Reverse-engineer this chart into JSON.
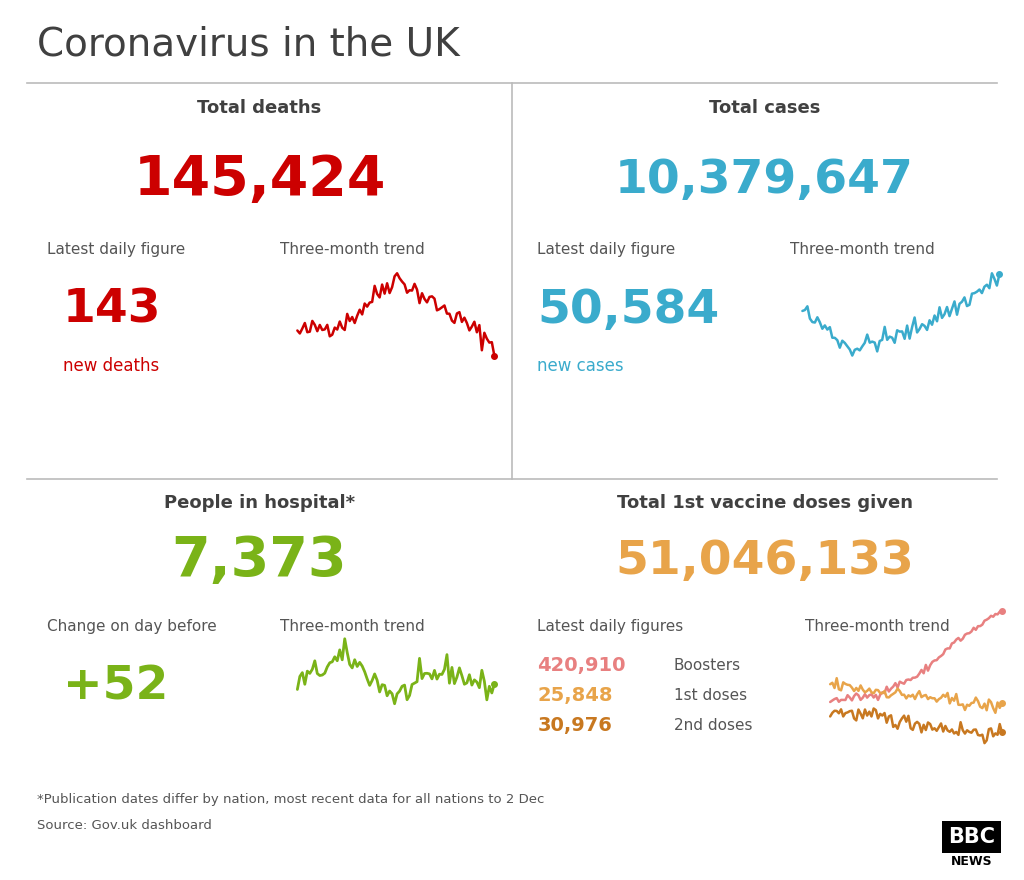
{
  "title": "Coronavirus in the UK",
  "bg_color": "#ffffff",
  "title_color": "#404040",
  "divider_color": "#bbbbbb",
  "deaths_label": "Total deaths",
  "deaths_total": "145,424",
  "deaths_total_color": "#cc0000",
  "deaths_daily_label": "Latest daily figure",
  "deaths_daily_value": "143",
  "deaths_daily_color": "#cc0000",
  "deaths_daily_sublabel": "new deaths",
  "deaths_trend_label": "Three-month trend",
  "cases_label": "Total cases",
  "cases_total": "10,379,647",
  "cases_total_color": "#3aabcc",
  "cases_daily_label": "Latest daily figure",
  "cases_daily_value": "50,584",
  "cases_daily_color": "#3aabcc",
  "cases_daily_sublabel": "new cases",
  "cases_trend_label": "Three-month trend",
  "hospital_label": "People in hospital*",
  "hospital_total": "7,373",
  "hospital_total_color": "#7ab318",
  "hospital_change_label": "Change on day before",
  "hospital_change_value": "+52",
  "hospital_change_color": "#7ab318",
  "hospital_trend_label": "Three-month trend",
  "vaccine_label": "Total 1st vaccine doses given",
  "vaccine_total": "51,046,133",
  "vaccine_total_color": "#e8a44a",
  "vaccine_daily_label": "Latest daily figures",
  "vaccine_boosters_value": "420,910",
  "vaccine_boosters_label": "Boosters",
  "vaccine_boosters_color": "#e88080",
  "vaccine_1st_value": "25,848",
  "vaccine_1st_label": "1st doses",
  "vaccine_1st_color": "#e8a44a",
  "vaccine_2nd_value": "30,976",
  "vaccine_2nd_label": "2nd doses",
  "vaccine_2nd_color": "#c87820",
  "vaccine_trend_label": "Three-month trend",
  "footer1": "*Publication dates differ by nation, most recent data for all nations to 2 Dec",
  "footer2": "Source: Gov.uk dashboard",
  "label_color": "#555555"
}
